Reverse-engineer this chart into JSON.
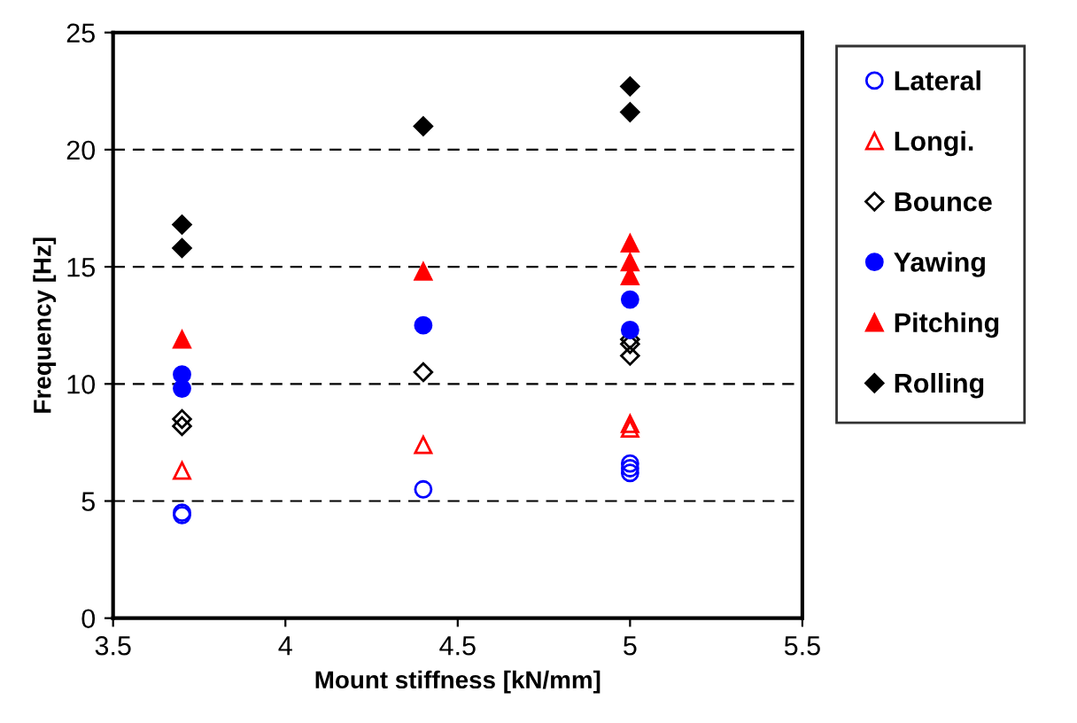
{
  "chart_data": {
    "type": "scatter",
    "xlabel": "Mount stiffness [kN/mm]",
    "ylabel": "Frequency [Hz]",
    "xlim": [
      3.5,
      5.5
    ],
    "xticks": [
      3.5,
      4,
      4.5,
      5,
      5.5
    ],
    "ylim": [
      0,
      25
    ],
    "yticks": [
      0,
      5,
      10,
      15,
      20,
      25
    ],
    "grid": "y",
    "legend": "top right",
    "series": [
      {
        "name": "Lateral",
        "color": "#0000ff",
        "marker": "circle",
        "x": [
          3.7,
          3.7,
          4.4,
          5,
          5,
          5
        ],
        "values": [
          4.4,
          4.5,
          5.5,
          6.2,
          6.4,
          6.6
        ]
      },
      {
        "name": "Longi.",
        "color": "#ff0000",
        "marker": "triangle",
        "x": [
          3.7,
          4.4,
          5,
          5
        ],
        "values": [
          6.3,
          7.4,
          8.1,
          8.3
        ]
      },
      {
        "name": "Bounce",
        "color": "#000000",
        "marker": "diamond",
        "x": [
          3.7,
          3.7,
          4.4,
          5,
          5,
          5
        ],
        "values": [
          8.2,
          8.5,
          10.5,
          11.2,
          11.7,
          11.9
        ]
      },
      {
        "name": "Yawing",
        "color": "#0000ff",
        "marker": "circle",
        "x": [
          3.7,
          3.7,
          4.4,
          5,
          5
        ],
        "values": [
          9.8,
          10.4,
          12.5,
          12.3,
          13.6
        ]
      },
      {
        "name": "Pitching",
        "color": "#ff0000",
        "marker": "triangle",
        "x": [
          3.7,
          4.4,
          5,
          5,
          5
        ],
        "values": [
          11.9,
          14.8,
          14.6,
          15.2,
          16.0
        ]
      },
      {
        "name": "Rolling",
        "color": "#000000",
        "marker": "diamond",
        "x": [
          3.7,
          3.7,
          4.4,
          5,
          5
        ],
        "values": [
          15.8,
          16.8,
          21.0,
          21.6,
          22.7
        ]
      }
    ]
  }
}
